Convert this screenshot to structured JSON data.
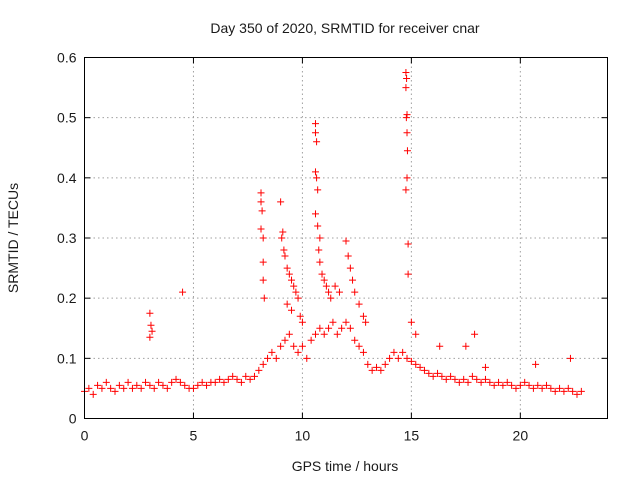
{
  "chart_data": {
    "type": "scatter",
    "title": "Day 350 of 2020, SRMTID for receiver cnar",
    "xlabel": "GPS time / hours",
    "ylabel": "SRMTID / TECUs",
    "xlim": [
      0,
      24
    ],
    "ylim": [
      0,
      0.6
    ],
    "xticks": [
      0,
      5,
      10,
      15,
      20
    ],
    "xtick_labels": [
      "0",
      "5",
      "10",
      "15",
      "20"
    ],
    "yticks": [
      0,
      0.1,
      0.2,
      0.3,
      0.4,
      0.5,
      0.6
    ],
    "ytick_labels": [
      "0",
      "0.1",
      "0.2",
      "0.3",
      "0.4",
      "0.5",
      "0.6"
    ],
    "grid": true,
    "marker": "plus",
    "color": "#ff0000",
    "series": [
      {
        "name": "SRMTID",
        "points": [
          [
            0.0,
            0.045
          ],
          [
            0.2,
            0.05
          ],
          [
            0.4,
            0.04
          ],
          [
            0.6,
            0.055
          ],
          [
            0.8,
            0.05
          ],
          [
            1.0,
            0.06
          ],
          [
            1.2,
            0.05
          ],
          [
            1.4,
            0.045
          ],
          [
            1.6,
            0.055
          ],
          [
            1.8,
            0.05
          ],
          [
            2.0,
            0.06
          ],
          [
            2.2,
            0.05
          ],
          [
            2.4,
            0.055
          ],
          [
            2.6,
            0.05
          ],
          [
            2.8,
            0.06
          ],
          [
            3.0,
            0.055
          ],
          [
            3.2,
            0.05
          ],
          [
            3.4,
            0.06
          ],
          [
            3.6,
            0.055
          ],
          [
            3.8,
            0.05
          ],
          [
            4.0,
            0.06
          ],
          [
            4.2,
            0.065
          ],
          [
            4.4,
            0.06
          ],
          [
            4.6,
            0.055
          ],
          [
            4.8,
            0.05
          ],
          [
            5.0,
            0.05
          ],
          [
            5.2,
            0.055
          ],
          [
            5.4,
            0.06
          ],
          [
            5.6,
            0.055
          ],
          [
            5.8,
            0.06
          ],
          [
            6.0,
            0.06
          ],
          [
            6.2,
            0.065
          ],
          [
            6.4,
            0.06
          ],
          [
            6.6,
            0.065
          ],
          [
            6.8,
            0.07
          ],
          [
            7.0,
            0.065
          ],
          [
            7.2,
            0.06
          ],
          [
            7.4,
            0.07
          ],
          [
            7.6,
            0.065
          ],
          [
            7.8,
            0.07
          ],
          [
            8.0,
            0.08
          ],
          [
            8.2,
            0.09
          ],
          [
            8.4,
            0.1
          ],
          [
            8.6,
            0.11
          ],
          [
            8.8,
            0.1
          ],
          [
            9.0,
            0.12
          ],
          [
            9.2,
            0.13
          ],
          [
            9.4,
            0.14
          ],
          [
            9.6,
            0.12
          ],
          [
            9.8,
            0.11
          ],
          [
            10.0,
            0.12
          ],
          [
            10.2,
            0.1
          ],
          [
            10.4,
            0.13
          ],
          [
            10.6,
            0.14
          ],
          [
            10.8,
            0.15
          ],
          [
            11.0,
            0.14
          ],
          [
            11.2,
            0.15
          ],
          [
            11.4,
            0.16
          ],
          [
            11.6,
            0.14
          ],
          [
            11.8,
            0.15
          ],
          [
            12.0,
            0.16
          ],
          [
            12.2,
            0.15
          ],
          [
            12.4,
            0.13
          ],
          [
            12.6,
            0.12
          ],
          [
            12.8,
            0.11
          ],
          [
            13.0,
            0.09
          ],
          [
            13.2,
            0.08
          ],
          [
            13.4,
            0.085
          ],
          [
            13.6,
            0.08
          ],
          [
            13.8,
            0.09
          ],
          [
            14.0,
            0.1
          ],
          [
            14.2,
            0.11
          ],
          [
            14.4,
            0.1
          ],
          [
            14.6,
            0.11
          ],
          [
            14.8,
            0.1
          ],
          [
            15.0,
            0.095
          ],
          [
            15.2,
            0.09
          ],
          [
            15.4,
            0.085
          ],
          [
            15.6,
            0.08
          ],
          [
            15.8,
            0.075
          ],
          [
            16.0,
            0.07
          ],
          [
            16.2,
            0.075
          ],
          [
            16.4,
            0.07
          ],
          [
            16.6,
            0.065
          ],
          [
            16.8,
            0.07
          ],
          [
            17.0,
            0.065
          ],
          [
            17.2,
            0.06
          ],
          [
            17.4,
            0.065
          ],
          [
            17.6,
            0.06
          ],
          [
            17.8,
            0.07
          ],
          [
            18.0,
            0.065
          ],
          [
            18.2,
            0.06
          ],
          [
            18.4,
            0.065
          ],
          [
            18.6,
            0.06
          ],
          [
            18.8,
            0.055
          ],
          [
            19.0,
            0.06
          ],
          [
            19.2,
            0.055
          ],
          [
            19.4,
            0.06
          ],
          [
            19.6,
            0.055
          ],
          [
            19.8,
            0.05
          ],
          [
            20.0,
            0.055
          ],
          [
            20.2,
            0.06
          ],
          [
            20.4,
            0.055
          ],
          [
            20.6,
            0.05
          ],
          [
            20.8,
            0.055
          ],
          [
            21.0,
            0.05
          ],
          [
            21.2,
            0.055
          ],
          [
            21.4,
            0.05
          ],
          [
            21.6,
            0.045
          ],
          [
            21.8,
            0.05
          ],
          [
            22.0,
            0.045
          ],
          [
            22.2,
            0.05
          ],
          [
            22.4,
            0.045
          ],
          [
            22.6,
            0.04
          ],
          [
            22.8,
            0.045
          ],
          [
            3.0,
            0.175
          ],
          [
            3.05,
            0.155
          ],
          [
            3.1,
            0.145
          ],
          [
            3.0,
            0.135
          ],
          [
            4.5,
            0.21
          ],
          [
            8.1,
            0.375
          ],
          [
            8.1,
            0.36
          ],
          [
            8.15,
            0.345
          ],
          [
            8.1,
            0.315
          ],
          [
            8.2,
            0.3
          ],
          [
            8.2,
            0.26
          ],
          [
            8.2,
            0.23
          ],
          [
            8.25,
            0.2
          ],
          [
            9.0,
            0.36
          ],
          [
            9.05,
            0.3
          ],
          [
            9.1,
            0.31
          ],
          [
            9.15,
            0.28
          ],
          [
            9.2,
            0.27
          ],
          [
            9.3,
            0.25
          ],
          [
            9.4,
            0.24
          ],
          [
            9.5,
            0.23
          ],
          [
            9.6,
            0.22
          ],
          [
            9.7,
            0.21
          ],
          [
            9.8,
            0.2
          ],
          [
            9.3,
            0.19
          ],
          [
            9.5,
            0.18
          ],
          [
            9.9,
            0.17
          ],
          [
            10.0,
            0.16
          ],
          [
            10.6,
            0.49
          ],
          [
            10.6,
            0.475
          ],
          [
            10.65,
            0.46
          ],
          [
            10.6,
            0.41
          ],
          [
            10.65,
            0.4
          ],
          [
            10.7,
            0.38
          ],
          [
            10.6,
            0.34
          ],
          [
            10.7,
            0.32
          ],
          [
            10.8,
            0.3
          ],
          [
            10.75,
            0.28
          ],
          [
            10.8,
            0.26
          ],
          [
            10.9,
            0.24
          ],
          [
            11.0,
            0.23
          ],
          [
            11.1,
            0.22
          ],
          [
            11.2,
            0.21
          ],
          [
            11.3,
            0.2
          ],
          [
            11.5,
            0.22
          ],
          [
            11.7,
            0.21
          ],
          [
            12.0,
            0.295
          ],
          [
            12.1,
            0.27
          ],
          [
            12.2,
            0.25
          ],
          [
            12.3,
            0.23
          ],
          [
            12.4,
            0.21
          ],
          [
            12.6,
            0.19
          ],
          [
            12.8,
            0.17
          ],
          [
            12.9,
            0.16
          ],
          [
            14.75,
            0.575
          ],
          [
            14.78,
            0.565
          ],
          [
            14.75,
            0.55
          ],
          [
            14.8,
            0.505
          ],
          [
            14.77,
            0.5
          ],
          [
            14.8,
            0.475
          ],
          [
            14.82,
            0.445
          ],
          [
            14.8,
            0.4
          ],
          [
            14.75,
            0.38
          ],
          [
            14.85,
            0.29
          ],
          [
            14.85,
            0.24
          ],
          [
            15.0,
            0.16
          ],
          [
            15.2,
            0.14
          ],
          [
            17.9,
            0.14
          ],
          [
            17.5,
            0.12
          ],
          [
            20.7,
            0.09
          ],
          [
            22.3,
            0.1
          ],
          [
            18.4,
            0.085
          ],
          [
            16.3,
            0.12
          ]
        ]
      }
    ]
  }
}
